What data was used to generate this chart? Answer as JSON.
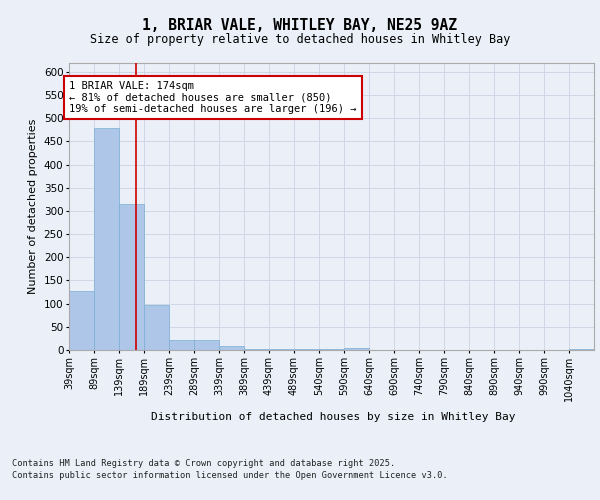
{
  "title1": "1, BRIAR VALE, WHITLEY BAY, NE25 9AZ",
  "title2": "Size of property relative to detached houses in Whitley Bay",
  "xlabel": "Distribution of detached houses by size in Whitley Bay",
  "ylabel": "Number of detached properties",
  "bin_labels": [
    "39sqm",
    "89sqm",
    "139sqm",
    "189sqm",
    "239sqm",
    "289sqm",
    "339sqm",
    "389sqm",
    "439sqm",
    "489sqm",
    "540sqm",
    "590sqm",
    "640sqm",
    "690sqm",
    "740sqm",
    "790sqm",
    "840sqm",
    "890sqm",
    "940sqm",
    "990sqm",
    "1040sqm"
  ],
  "bin_edges": [
    39,
    89,
    139,
    189,
    239,
    289,
    339,
    389,
    439,
    489,
    540,
    590,
    640,
    690,
    740,
    790,
    840,
    890,
    940,
    990,
    1040,
    1090
  ],
  "bar_values": [
    128,
    478,
    315,
    98,
    22,
    22,
    8,
    2,
    2,
    2,
    2,
    4,
    0,
    0,
    0,
    0,
    0,
    0,
    0,
    0,
    2
  ],
  "bar_color": "#aec6e8",
  "bar_edge_color": "#7aafd4",
  "grid_color": "#d0d8e8",
  "background_color": "#eaeff8",
  "fig_background_color": "#eaeff8",
  "red_line_x": 174,
  "annotation_text": "1 BRIAR VALE: 174sqm\n← 81% of detached houses are smaller (850)\n19% of semi-detached houses are larger (196) →",
  "annotation_box_color": "#ffffff",
  "annotation_box_edge": "#cc0000",
  "ylim": [
    0,
    620
  ],
  "yticks": [
    0,
    50,
    100,
    150,
    200,
    250,
    300,
    350,
    400,
    450,
    500,
    550,
    600
  ],
  "footer_line1": "Contains HM Land Registry data © Crown copyright and database right 2025.",
  "footer_line2": "Contains public sector information licensed under the Open Government Licence v3.0."
}
